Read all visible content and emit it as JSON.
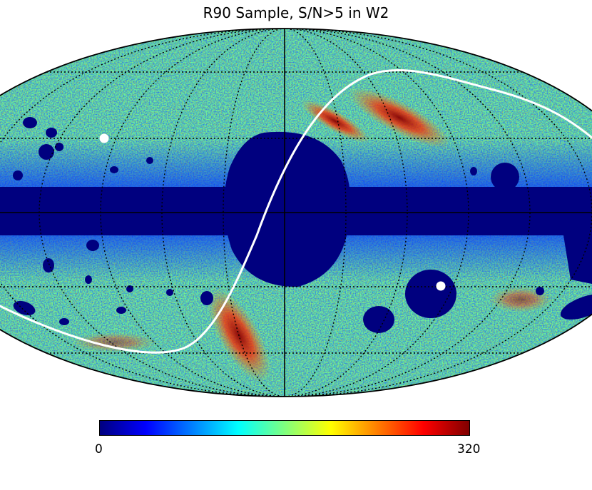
{
  "title": "R90 Sample, S/N>5 in W2",
  "colorbar": {
    "colormap": "jet",
    "min_label": "0",
    "max_label": "320",
    "colors": [
      "#00007f",
      "#0000ff",
      "#007fff",
      "#00ffff",
      "#7fff7f",
      "#ffff00",
      "#ff7f00",
      "#ff0000",
      "#7f0000"
    ]
  },
  "map": {
    "projection": "mollweide",
    "graticule": "dotted",
    "mask_color": "#00007f",
    "background_color": "#7fff7f",
    "curve_color": "#ffffff",
    "marker_color": "#ffffff"
  }
}
